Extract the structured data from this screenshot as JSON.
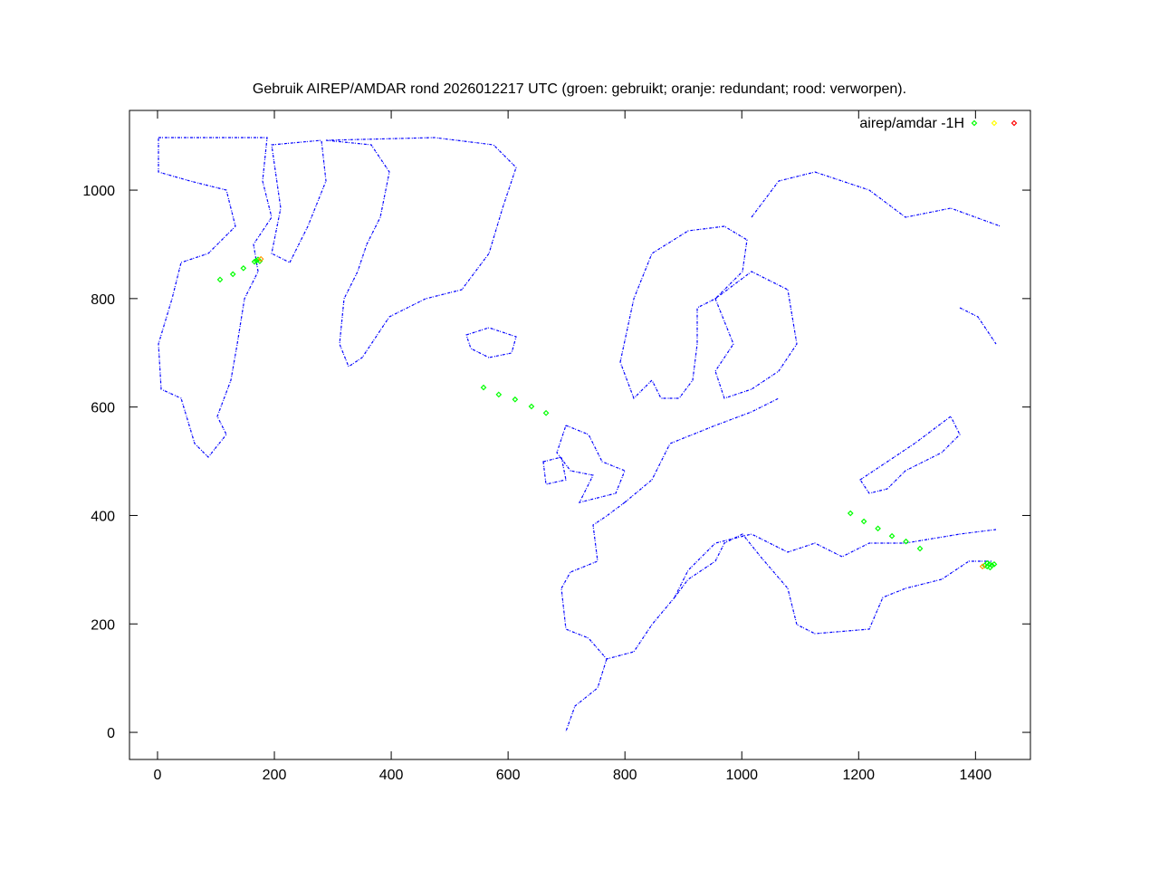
{
  "chart_data": {
    "type": "scatter",
    "title": "Gebruik AIREP/AMDAR rond 2026012217 UTC (groen: gebruikt; oranje: redundant; rood: verworpen).",
    "xlabel": "",
    "ylabel": "",
    "xlim": [
      -48,
      1494
    ],
    "ylim": [
      -50,
      1147
    ],
    "xticks": [
      0,
      200,
      400,
      600,
      800,
      1000,
      1200,
      1400
    ],
    "yticks": [
      0,
      200,
      400,
      600,
      800,
      1000
    ],
    "grid": false,
    "legend": {
      "label": "airep/amdar -1H",
      "placement": "top-right"
    },
    "background_map": "coastlines",
    "colors": {
      "used": "#00ff00",
      "redundant": "#ffff00",
      "rejected": "#ff0000",
      "coast": "#0000ff",
      "redundant_points": "#ff9900"
    },
    "series": [
      {
        "status": "used",
        "color": "#00ff00",
        "points": [
          [
            558,
            636
          ],
          [
            584,
            623
          ],
          [
            612,
            614
          ],
          [
            640,
            601
          ],
          [
            665,
            589
          ],
          [
            1186,
            404
          ],
          [
            1209,
            389
          ],
          [
            1233,
            376
          ],
          [
            1257,
            362
          ],
          [
            1281,
            352
          ],
          [
            1305,
            339
          ],
          [
            1416,
            308
          ],
          [
            1420,
            306
          ],
          [
            1424,
            310
          ],
          [
            1428,
            308
          ],
          [
            1432,
            310
          ],
          [
            1420,
            312
          ],
          [
            1425,
            304
          ],
          [
            107,
            835
          ],
          [
            129,
            845
          ],
          [
            147,
            856
          ],
          [
            166,
            868
          ],
          [
            169,
            870
          ],
          [
            172,
            872
          ],
          [
            175,
            869
          ]
        ]
      },
      {
        "status": "redundant",
        "color": "#ff9900",
        "points": [
          [
            1412,
            306
          ],
          [
            177,
            873
          ]
        ]
      },
      {
        "status": "rejected",
        "color": "#ff0000",
        "points": []
      }
    ]
  }
}
